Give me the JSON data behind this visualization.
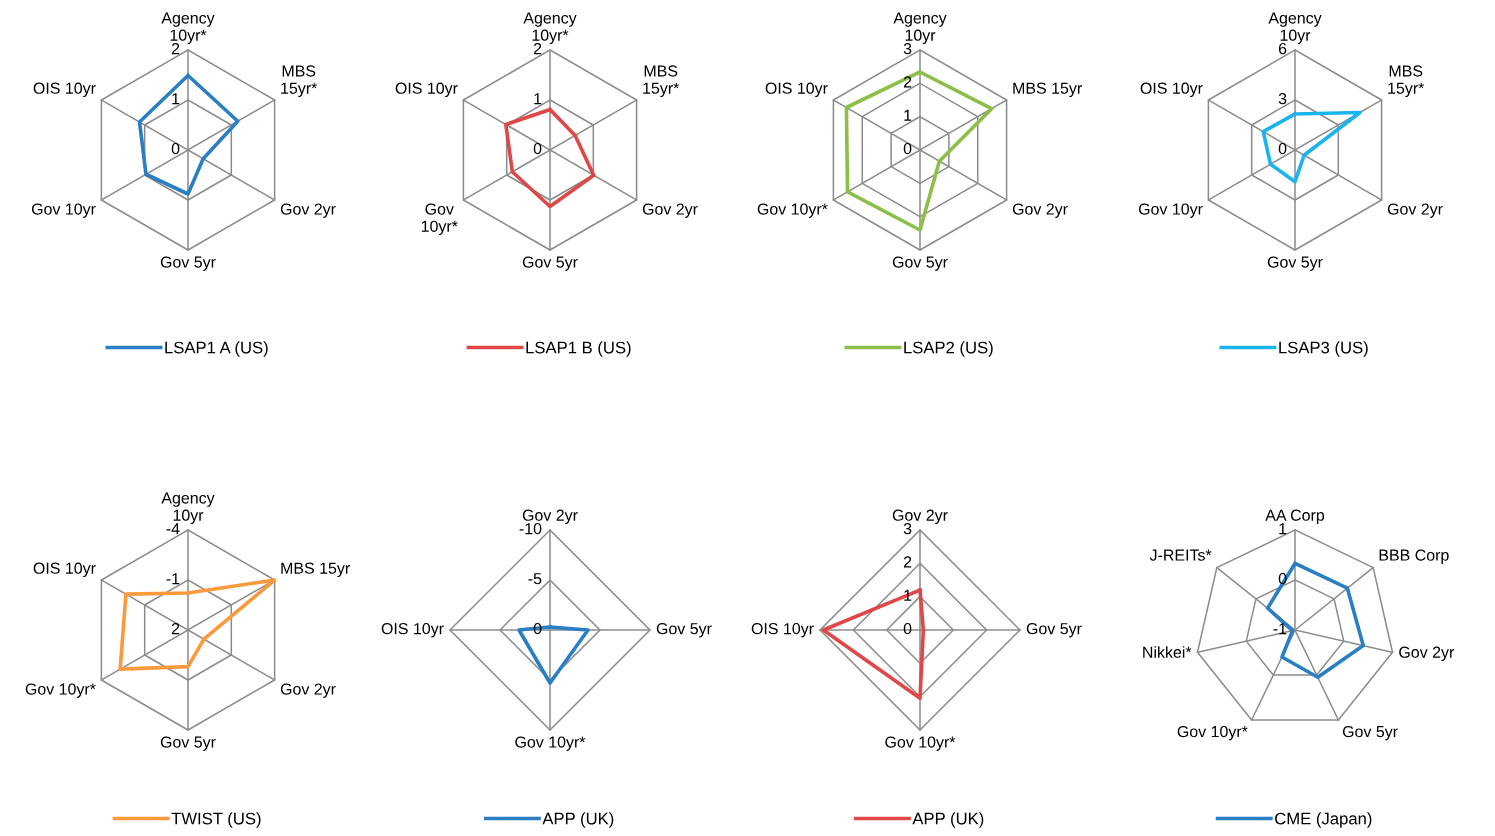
{
  "chart_data": [
    {
      "type": "radar",
      "categories": [
        "Agency\n10yr*",
        "MBS\n15yr*",
        "Gov 2yr",
        "Gov 5yr",
        "Gov 10yr",
        "OIS 10yr"
      ],
      "ylim": [
        0,
        2
      ],
      "yticks": [
        0,
        1,
        2
      ],
      "grid": true,
      "legend": "bottom",
      "series": [
        {
          "name": "LSAP1 A (US)",
          "color": "#2a7fc4",
          "values": [
            1.49,
            1.15,
            0.35,
            0.88,
            0.97,
            1.12
          ]
        }
      ]
    },
    {
      "type": "radar",
      "categories": [
        "Agency\n10yr*",
        "MBS\n15yr*",
        "Gov 2yr",
        "Gov 5yr",
        "Gov\n10yr*",
        "OIS 10yr"
      ],
      "ylim": [
        0,
        2
      ],
      "yticks": [
        0,
        1,
        2
      ],
      "grid": true,
      "legend": "bottom",
      "series": [
        {
          "name": "LSAP1 B (US)",
          "color": "#e04848",
          "values": [
            0.81,
            0.58,
            1.01,
            1.13,
            0.87,
            1.02
          ]
        }
      ]
    },
    {
      "type": "radar",
      "categories": [
        "Agency\n10yr",
        "MBS 15yr",
        "Gov 2yr",
        "Gov 5yr",
        "Gov 10yr*",
        "OIS 10yr"
      ],
      "ylim": [
        0,
        3
      ],
      "yticks": [
        0,
        1,
        2,
        3
      ],
      "grid": true,
      "legend": "bottom",
      "series": [
        {
          "name": "LSAP2 (US)",
          "color": "#8cbf48",
          "values": [
            2.34,
            2.48,
            0.67,
            2.4,
            2.51,
            2.55
          ]
        }
      ]
    },
    {
      "type": "radar",
      "categories": [
        "Agency\n10yr",
        "MBS\n15yr*",
        "Gov 2yr",
        "Gov 5yr",
        "Gov 10yr",
        "OIS 10yr"
      ],
      "ylim": [
        0,
        6
      ],
      "yticks": [
        0,
        3,
        6
      ],
      "grid": true,
      "legend": "bottom",
      "series": [
        {
          "name": "LSAP3 (US)",
          "color": "#1ab4ec",
          "values": [
            2.16,
            4.5,
            0.63,
            1.9,
            1.7,
            2.2
          ]
        }
      ]
    },
    {
      "type": "radar",
      "categories": [
        "Agency\n10yr",
        "MBS 15yr",
        "Gov 2yr",
        "Gov 5yr",
        "Gov 10yr*",
        "OIS 10yr"
      ],
      "ylim": [
        2,
        -4
      ],
      "yticks": [
        -4,
        -1,
        2
      ],
      "grid": true,
      "legend": "bottom",
      "series": [
        {
          "name": "TWIST (US)",
          "color": "#fb9a3c",
          "values": [
            -0.22,
            -4,
            0.9,
            -0.2,
            -2.7,
            -2.3
          ]
        }
      ]
    },
    {
      "type": "radar",
      "categories": [
        "Gov 2yr",
        "Gov 5yr",
        "Gov 10yr*",
        "OIS 10yr"
      ],
      "ylim": [
        0,
        -10
      ],
      "yticks": [
        -10,
        -5,
        0
      ],
      "grid": true,
      "legend": "bottom",
      "series": [
        {
          "name": "APP (UK)",
          "color": "#2a7fc4",
          "values": [
            -0.3,
            -3.8,
            -5.3,
            -3.1
          ]
        }
      ]
    },
    {
      "type": "radar",
      "categories": [
        "Gov 2yr",
        "Gov 5yr",
        "Gov 10yr*",
        "OIS 10yr"
      ],
      "ylim": [
        0,
        3
      ],
      "yticks": [
        0,
        1,
        2,
        3
      ],
      "grid": true,
      "legend": "bottom",
      "series": [
        {
          "name": "APP (UK)",
          "color": "#e04848",
          "values": [
            1.2,
            0.1,
            2.05,
            2.9
          ]
        }
      ]
    },
    {
      "type": "radar",
      "categories": [
        "AA Corp",
        "BBB Corp",
        "Gov 2yr",
        "Gov 5yr",
        "Gov 10yr*",
        "Nikkei*",
        "J-REITs*"
      ],
      "ylim": [
        -1,
        1
      ],
      "yticks": [
        -1,
        0,
        1
      ],
      "grid": true,
      "legend": "bottom",
      "series": [
        {
          "name": "CME (Japan)",
          "color": "#2a7fc4",
          "values": [
            0.33,
            0.34,
            0.4,
            0.05,
            -0.4,
            -0.95,
            -0.3
          ]
        }
      ]
    }
  ]
}
